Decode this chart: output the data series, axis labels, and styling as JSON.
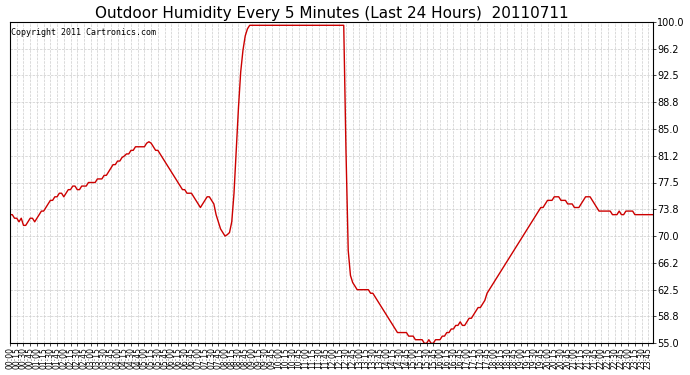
{
  "title": "Outdoor Humidity Every 5 Minutes (Last 24 Hours)  20110711",
  "copyright_text": "Copyright 2011 Cartronics.com",
  "line_color": "#cc0000",
  "background_color": "#ffffff",
  "plot_bg_color": "#ffffff",
  "grid_color": "#bbbbbb",
  "ylim": [
    55.0,
    100.0
  ],
  "yticks": [
    55.0,
    58.8,
    62.5,
    66.2,
    70.0,
    73.8,
    77.5,
    81.2,
    85.0,
    88.8,
    92.5,
    96.2,
    100.0
  ],
  "title_fontsize": 11,
  "line_width": 1.0,
  "humidity_data": [
    73.0,
    73.0,
    72.5,
    72.5,
    72.0,
    72.5,
    71.5,
    71.5,
    72.0,
    72.5,
    72.5,
    72.0,
    72.5,
    73.0,
    73.5,
    73.5,
    74.0,
    74.5,
    75.0,
    75.0,
    75.5,
    75.5,
    76.0,
    76.0,
    75.5,
    76.0,
    76.5,
    76.5,
    77.0,
    77.0,
    76.5,
    76.5,
    77.0,
    77.0,
    77.0,
    77.5,
    77.5,
    77.5,
    77.5,
    78.0,
    78.0,
    78.0,
    78.5,
    78.5,
    79.0,
    79.5,
    80.0,
    80.0,
    80.5,
    80.5,
    81.0,
    81.2,
    81.5,
    81.5,
    82.0,
    82.0,
    82.5,
    82.5,
    82.5,
    82.5,
    82.5,
    83.0,
    83.2,
    83.0,
    82.5,
    82.0,
    82.0,
    81.5,
    81.0,
    80.5,
    80.0,
    79.5,
    79.0,
    78.5,
    78.0,
    77.5,
    77.0,
    76.5,
    76.5,
    76.0,
    76.0,
    76.0,
    75.5,
    75.0,
    74.5,
    74.0,
    74.5,
    75.0,
    75.5,
    75.5,
    75.0,
    74.5,
    73.0,
    72.0,
    71.0,
    70.5,
    70.0,
    70.2,
    70.5,
    72.0,
    76.0,
    82.0,
    88.0,
    93.0,
    96.0,
    98.0,
    99.0,
    99.5,
    99.5,
    99.5,
    99.5,
    99.5,
    99.5,
    99.5,
    99.5,
    99.5,
    99.5,
    99.5,
    99.5,
    99.5,
    99.5,
    99.5,
    99.5,
    99.5,
    99.5,
    99.5,
    99.5,
    99.5,
    99.5,
    99.5,
    99.5,
    99.5,
    99.5,
    99.5,
    99.5,
    99.5,
    99.5,
    99.5,
    99.5,
    99.5,
    99.5,
    99.5,
    99.5,
    99.5,
    99.5,
    99.5,
    99.5,
    99.5,
    99.5,
    99.5,
    82.0,
    68.0,
    64.5,
    63.5,
    63.0,
    62.5,
    62.5,
    62.5,
    62.5,
    62.5,
    62.5,
    62.0,
    62.0,
    61.5,
    61.0,
    60.5,
    60.0,
    59.5,
    59.0,
    58.5,
    58.0,
    57.5,
    57.0,
    56.5,
    56.5,
    56.5,
    56.5,
    56.5,
    56.0,
    56.0,
    56.0,
    55.5,
    55.5,
    55.5,
    55.5,
    55.0,
    55.0,
    55.5,
    55.0,
    55.0,
    55.5,
    55.5,
    55.5,
    56.0,
    56.0,
    56.5,
    56.5,
    57.0,
    57.0,
    57.5,
    57.5,
    58.0,
    57.5,
    57.5,
    58.0,
    58.5,
    58.5,
    59.0,
    59.5,
    60.0,
    60.0,
    60.5,
    61.0,
    62.0,
    62.5,
    63.0,
    63.5,
    64.0,
    64.5,
    65.0,
    65.5,
    66.0,
    66.5,
    67.0,
    67.5,
    68.0,
    68.5,
    69.0,
    69.5,
    70.0,
    70.5,
    71.0,
    71.5,
    72.0,
    72.5,
    73.0,
    73.5,
    74.0,
    74.0,
    74.5,
    75.0,
    75.0,
    75.0,
    75.5,
    75.5,
    75.5,
    75.0,
    75.0,
    75.0,
    74.5,
    74.5,
    74.5,
    74.0,
    74.0,
    74.0,
    74.5,
    75.0,
    75.5,
    75.5,
    75.5,
    75.0,
    74.5,
    74.0,
    73.5,
    73.5,
    73.5,
    73.5,
    73.5,
    73.5,
    73.0,
    73.0,
    73.0,
    73.5,
    73.0,
    73.0,
    73.5,
    73.5,
    73.5,
    73.5,
    73.0,
    73.0,
    73.0,
    73.0,
    73.0,
    73.0,
    73.0,
    73.0,
    73.0,
    73.0,
    73.0,
    73.0,
    73.0,
    73.0,
    73.0,
    73.0,
    73.0,
    73.0,
    73.0
  ]
}
